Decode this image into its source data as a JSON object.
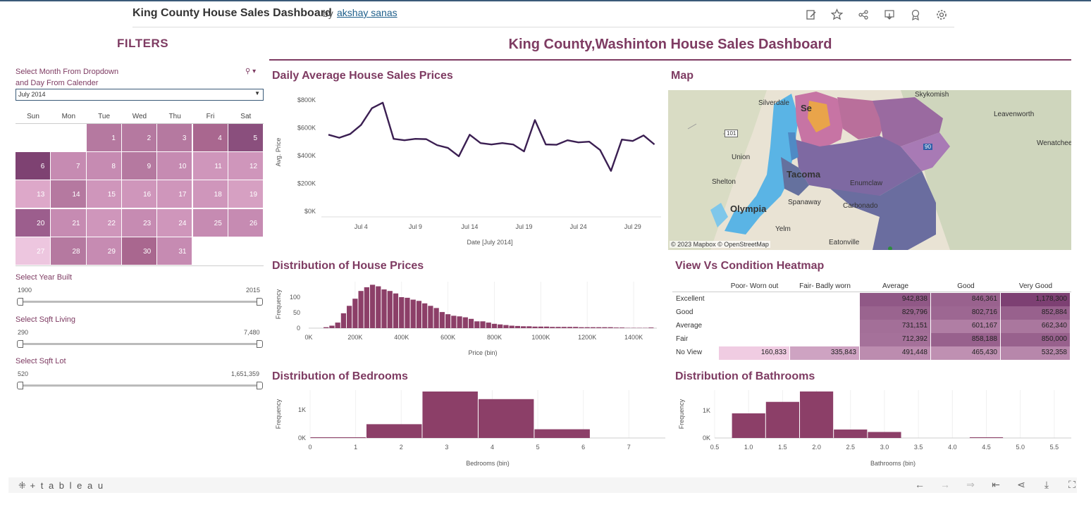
{
  "header": {
    "title": "King County House Sales Dashboard",
    "by": "by",
    "author": "akshay sanas"
  },
  "filters": {
    "title": "FILTERS",
    "month_label_1": "Select Month From Dropdown",
    "month_label_2": "and Day From Calender",
    "month_value": "July 2014",
    "weekdays": [
      "Sun",
      "Mon",
      "Tue",
      "Wed",
      "Thu",
      "Fri",
      "Sat"
    ],
    "year_label": "Select Year Built",
    "year_min": "1900",
    "year_max": "2015",
    "living_label": "Select Sqft Living",
    "living_min": "290",
    "living_max": "7,480",
    "lot_label": "Select Sqft Lot",
    "lot_min": "520",
    "lot_max": "1,651,359"
  },
  "calendar": {
    "days": [
      {
        "d": "1",
        "col": 2,
        "row": 0,
        "c": "#b579a0"
      },
      {
        "d": "2",
        "col": 3,
        "row": 0,
        "c": "#b579a0"
      },
      {
        "d": "3",
        "col": 4,
        "row": 0,
        "c": "#b579a0"
      },
      {
        "d": "4",
        "col": 5,
        "row": 0,
        "c": "#a9678f"
      },
      {
        "d": "5",
        "col": 6,
        "row": 0,
        "c": "#8a4f7d"
      },
      {
        "d": "6",
        "col": 0,
        "row": 1,
        "c": "#7e4272"
      },
      {
        "d": "7",
        "col": 1,
        "row": 1,
        "c": "#c68bb2"
      },
      {
        "d": "8",
        "col": 2,
        "row": 1,
        "c": "#c68bb2"
      },
      {
        "d": "9",
        "col": 3,
        "row": 1,
        "c": "#b579a0"
      },
      {
        "d": "10",
        "col": 4,
        "row": 1,
        "c": "#c68bb2"
      },
      {
        "d": "11",
        "col": 5,
        "row": 1,
        "c": "#cf96bb"
      },
      {
        "d": "12",
        "col": 6,
        "row": 1,
        "c": "#cf96bb"
      },
      {
        "d": "13",
        "col": 0,
        "row": 2,
        "c": "#dda8c9"
      },
      {
        "d": "14",
        "col": 1,
        "row": 2,
        "c": "#b579a0"
      },
      {
        "d": "15",
        "col": 2,
        "row": 2,
        "c": "#cf96bb"
      },
      {
        "d": "16",
        "col": 3,
        "row": 2,
        "c": "#cf96bb"
      },
      {
        "d": "17",
        "col": 4,
        "row": 2,
        "c": "#cf96bb"
      },
      {
        "d": "18",
        "col": 5,
        "row": 2,
        "c": "#cf96bb"
      },
      {
        "d": "19",
        "col": 6,
        "row": 2,
        "c": "#d6a0c2"
      },
      {
        "d": "20",
        "col": 0,
        "row": 3,
        "c": "#9c5e8d"
      },
      {
        "d": "21",
        "col": 1,
        "row": 3,
        "c": "#c68bb2"
      },
      {
        "d": "22",
        "col": 2,
        "row": 3,
        "c": "#cf96bb"
      },
      {
        "d": "23",
        "col": 3,
        "row": 3,
        "c": "#c68bb2"
      },
      {
        "d": "24",
        "col": 4,
        "row": 3,
        "c": "#cf96bb"
      },
      {
        "d": "25",
        "col": 5,
        "row": 3,
        "c": "#c68bb2"
      },
      {
        "d": "26",
        "col": 6,
        "row": 3,
        "c": "#c68bb2"
      },
      {
        "d": "27",
        "col": 0,
        "row": 4,
        "c": "#edc6df"
      },
      {
        "d": "28",
        "col": 1,
        "row": 4,
        "c": "#b579a0"
      },
      {
        "d": "29",
        "col": 2,
        "row": 4,
        "c": "#c68bb2"
      },
      {
        "d": "30",
        "col": 3,
        "row": 4,
        "c": "#a9678f"
      },
      {
        "d": "31",
        "col": 4,
        "row": 4,
        "c": "#c68bb2"
      }
    ]
  },
  "main": {
    "title": "King County,Washinton House Sales Dashboard"
  },
  "line_chart": {
    "title": "Daily Average House Sales Prices",
    "ylabel": "Avg. Price",
    "xlabel": "Date [July 2014]",
    "yticks": [
      "$0K",
      "$200K",
      "$400K",
      "$600K",
      "$800K"
    ],
    "xticks": [
      "Jul 4",
      "Jul 9",
      "Jul 14",
      "Jul 19",
      "Jul 24",
      "Jul 29"
    ],
    "color": "#3b1f52"
  },
  "map": {
    "title": "Map",
    "attribution": "© 2023 Mapbox © OpenStreetMap",
    "labels": [
      "Skykomish",
      "Silverdale",
      "Leavenworth",
      "Wenatchee",
      "Union",
      "Tacoma",
      "Shelton",
      "Olympia",
      "Spanaway",
      "Carbonado",
      "Yelm",
      "Eatonville",
      "Enumclaw",
      "Se",
      "101",
      "90"
    ]
  },
  "histogram": {
    "title": "Distribution of House Prices",
    "ylabel": "Frequency",
    "xlabel": "Price (bin)",
    "yticks": [
      "0",
      "50",
      "100"
    ],
    "xticks": [
      "0K",
      "200K",
      "400K",
      "600K",
      "800K",
      "1000K",
      "1200K",
      "1400K"
    ],
    "color": "#8c3f68"
  },
  "heatmap": {
    "title": "View Vs Condition Heatmap",
    "columns": [
      "Poor- Worn out",
      "Fair- Badly worn",
      "Average",
      "Good",
      "Very Good"
    ],
    "rows": [
      "Excellent",
      "Good",
      "Average",
      "Fair",
      "No View"
    ]
  },
  "bedrooms": {
    "title": "Distribution of Bedrooms",
    "ylabel": "Frequency",
    "xlabel": "Bedrooms (bin)",
    "yticks": [
      "0K",
      "1K"
    ],
    "xticks": [
      "0",
      "1",
      "2",
      "3",
      "4",
      "5",
      "6",
      "7"
    ],
    "color": "#8c3f68"
  },
  "bathrooms": {
    "title": "Distribution of Bathrooms",
    "ylabel": "Frequency",
    "xlabel": "Bathrooms (bin)",
    "yticks": [
      "0K",
      "1K"
    ],
    "xticks": [
      "0.5",
      "1.0",
      "1.5",
      "2.0",
      "2.5",
      "3.0",
      "3.5",
      "4.0",
      "4.5",
      "5.0",
      "5.5"
    ],
    "color": "#8c3f68"
  },
  "footer": {
    "logo": "+ t a b l e a u"
  },
  "chart_data": [
    {
      "type": "line",
      "title": "Daily Average House Sales Prices",
      "xlabel": "Date [July 2014]",
      "ylabel": "Avg. Price",
      "x": [
        1,
        2,
        3,
        4,
        5,
        6,
        7,
        8,
        9,
        10,
        11,
        12,
        13,
        14,
        15,
        16,
        17,
        18,
        19,
        20,
        21,
        22,
        23,
        24,
        25,
        26,
        27,
        28,
        29,
        30,
        31
      ],
      "values": [
        550,
        528,
        555,
        620,
        740,
        780,
        520,
        510,
        520,
        518,
        475,
        455,
        395,
        550,
        490,
        480,
        490,
        480,
        430,
        655,
        480,
        478,
        510,
        495,
        500,
        440,
        290,
        515,
        505,
        545,
        480
      ],
      "ylim": [
        0,
        850
      ]
    },
    {
      "type": "bar",
      "title": "Distribution of House Prices",
      "xlabel": "Price (bin)",
      "ylabel": "Frequency",
      "bin_width": 25,
      "x": [
        75,
        100,
        125,
        150,
        175,
        200,
        225,
        250,
        275,
        300,
        325,
        350,
        375,
        400,
        425,
        450,
        475,
        500,
        525,
        550,
        575,
        600,
        625,
        650,
        675,
        700,
        725,
        750,
        775,
        800,
        825,
        850,
        875,
        900,
        925,
        950,
        975,
        1000,
        1025,
        1050,
        1075,
        1100,
        1125,
        1150,
        1175,
        1200,
        1225,
        1250,
        1275,
        1300,
        1325,
        1350,
        1375,
        1400,
        1425,
        1450,
        1475
      ],
      "values": [
        3,
        8,
        18,
        48,
        72,
        95,
        120,
        132,
        140,
        135,
        125,
        120,
        112,
        100,
        98,
        92,
        88,
        80,
        72,
        65,
        52,
        45,
        40,
        38,
        35,
        30,
        22,
        22,
        18,
        14,
        12,
        10,
        8,
        7,
        6,
        6,
        5,
        5,
        5,
        4,
        4,
        4,
        4,
        4,
        3,
        3,
        3,
        3,
        3,
        3,
        2,
        2,
        1,
        1,
        1,
        1,
        2
      ],
      "xlim": [
        0,
        1500
      ],
      "ylim": [
        0,
        150
      ]
    },
    {
      "type": "bar",
      "title": "Distribution of Bedrooms",
      "xlabel": "Bedrooms (bin)",
      "ylabel": "Frequency",
      "bins": [
        [
          0.0,
          1.23,
          10
        ],
        [
          1.23,
          2.46,
          490
        ],
        [
          2.46,
          3.69,
          1650
        ],
        [
          3.69,
          4.92,
          1380
        ],
        [
          4.92,
          6.15,
          310
        ],
        [
          6.15,
          7.38,
          0
        ]
      ],
      "xlim": [
        0,
        7.8
      ],
      "ylim": [
        0,
        1700
      ]
    },
    {
      "type": "bar",
      "title": "Distribution of Bathrooms",
      "xlabel": "Bathrooms (bin)",
      "ylabel": "Frequency",
      "bins": [
        [
          0.75,
          1.25,
          900
        ],
        [
          1.25,
          1.75,
          1320
        ],
        [
          1.75,
          2.25,
          1700
        ],
        [
          2.25,
          2.75,
          310
        ],
        [
          2.75,
          3.25,
          220
        ],
        [
          3.25,
          3.75,
          0
        ],
        [
          3.75,
          4.25,
          0
        ],
        [
          4.25,
          4.75,
          10
        ]
      ],
      "xlim": [
        0.5,
        5.75
      ],
      "ylim": [
        0,
        1750
      ]
    },
    {
      "type": "heatmap",
      "title": "View Vs Condition Heatmap",
      "columns": [
        "Poor- Worn out",
        "Fair- Badly worn",
        "Average",
        "Good",
        "Very Good"
      ],
      "rows": [
        "Excellent",
        "Good",
        "Average",
        "Fair",
        "No View"
      ],
      "cells": [
        [
          "",
          "",
          "942,838",
          "846,361",
          "1,178,300"
        ],
        [
          "",
          "",
          "829,796",
          "802,716",
          "852,884"
        ],
        [
          "",
          "",
          "731,151",
          "601,167",
          "662,340"
        ],
        [
          "",
          "",
          "712,392",
          "858,188",
          "850,000"
        ],
        [
          "160,833",
          "335,843",
          "491,448",
          "465,430",
          "532,358"
        ]
      ],
      "values": [
        [
          null,
          null,
          942838,
          846361,
          1178300
        ],
        [
          null,
          null,
          829796,
          802716,
          852884
        ],
        [
          null,
          null,
          731151,
          601167,
          662340
        ],
        [
          null,
          null,
          712392,
          858188,
          850000
        ],
        [
          160833,
          335843,
          491448,
          465430,
          532358
        ]
      ]
    }
  ]
}
